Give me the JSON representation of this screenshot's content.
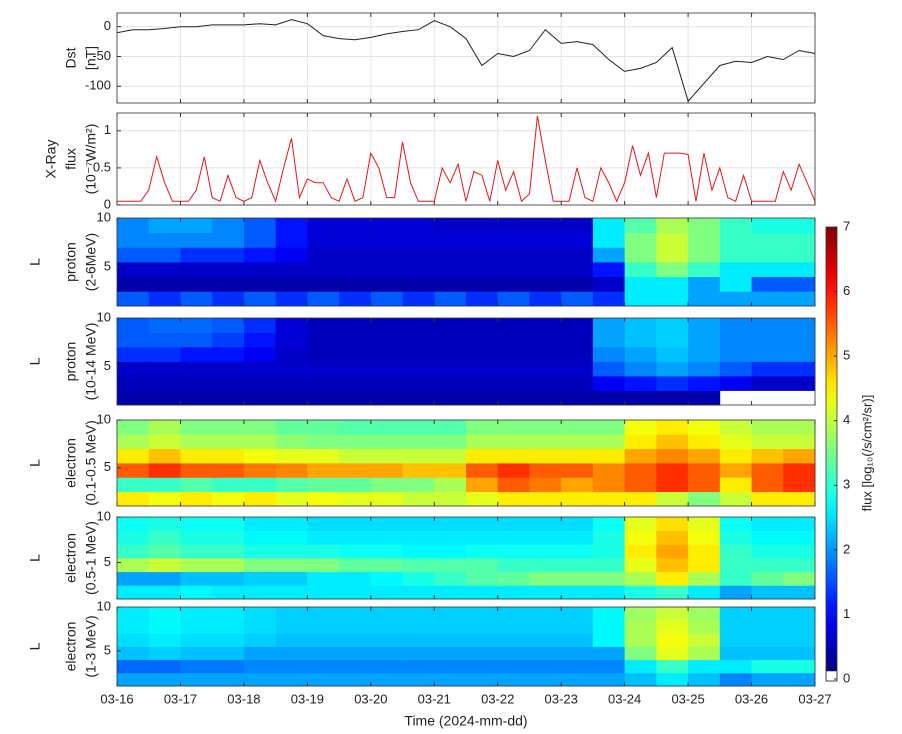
{
  "time_axis": {
    "label": "Time (2024-mm-dd)",
    "lim": [
      0,
      11
    ],
    "ticks": [
      {
        "value": 0,
        "label": "03-16"
      },
      {
        "value": 1,
        "label": "03-17"
      },
      {
        "value": 2,
        "label": "03-18"
      },
      {
        "value": 3,
        "label": "03-19"
      },
      {
        "value": 4,
        "label": "03-20"
      },
      {
        "value": 5,
        "label": "03-21"
      },
      {
        "value": 6,
        "label": "03-22"
      },
      {
        "value": 7,
        "label": "03-23"
      },
      {
        "value": 8,
        "label": "03-24"
      },
      {
        "value": 9,
        "label": "03-25"
      },
      {
        "value": 10,
        "label": "03-26"
      },
      {
        "value": 11,
        "label": "03-27"
      }
    ]
  },
  "colorbar": {
    "label": "flux [log₁₀(/s/cm²/sr)]",
    "lim": [
      0,
      7
    ],
    "ticks": [
      0,
      1,
      2,
      3,
      4,
      5,
      6,
      7
    ]
  },
  "chart_data": [
    {
      "type": "line",
      "ylabel": [
        "Dst",
        "[nT]"
      ],
      "color": "#222222",
      "grid": true,
      "ylim": [
        -128,
        23
      ],
      "yticks": [
        -100,
        -50,
        0
      ],
      "x": [
        0,
        0.25,
        0.5,
        0.75,
        1,
        1.25,
        1.5,
        1.75,
        2,
        2.25,
        2.5,
        2.75,
        3,
        3.25,
        3.5,
        3.75,
        4,
        4.25,
        4.5,
        4.75,
        5,
        5.25,
        5.5,
        5.75,
        6,
        6.25,
        6.5,
        6.75,
        7,
        7.25,
        7.5,
        7.75,
        8,
        8.25,
        8.5,
        8.75,
        9,
        9.25,
        9.5,
        9.75,
        10,
        10.25,
        10.5,
        10.75,
        11
      ],
      "values": [
        -10,
        -5,
        -5,
        -3,
        0,
        0,
        3,
        3,
        3,
        5,
        3,
        12,
        5,
        -15,
        -20,
        -22,
        -18,
        -12,
        -8,
        -5,
        10,
        0,
        -20,
        -65,
        -45,
        -50,
        -40,
        -5,
        -28,
        -25,
        -30,
        -55,
        -75,
        -70,
        -60,
        -35,
        -125,
        -95,
        -65,
        -58,
        -60,
        -50,
        -55,
        -40,
        -45
      ]
    },
    {
      "type": "line",
      "ylabel": [
        "X-Ray",
        "flux",
        "(10⁻⁷W/m²)"
      ],
      "color": "#e8141b",
      "grid": true,
      "ylim": [
        0,
        1.24
      ],
      "yticks": [
        0,
        0.5,
        1
      ],
      "x": [
        0,
        0.125,
        0.25,
        0.375,
        0.5,
        0.625,
        0.75,
        0.875,
        1,
        1.125,
        1.25,
        1.375,
        1.5,
        1.625,
        1.75,
        1.875,
        2,
        2.125,
        2.25,
        2.375,
        2.5,
        2.625,
        2.75,
        2.875,
        3,
        3.125,
        3.25,
        3.375,
        3.5,
        3.625,
        3.75,
        3.875,
        4,
        4.125,
        4.25,
        4.375,
        4.5,
        4.625,
        4.75,
        4.875,
        5,
        5.125,
        5.25,
        5.375,
        5.5,
        5.625,
        5.75,
        5.875,
        6,
        6.125,
        6.25,
        6.375,
        6.5,
        6.625,
        6.75,
        6.875,
        7,
        7.125,
        7.25,
        7.375,
        7.5,
        7.625,
        7.75,
        7.875,
        8,
        8.125,
        8.25,
        8.375,
        8.5,
        8.625,
        8.75,
        8.875,
        9,
        9.125,
        9.25,
        9.375,
        9.5,
        9.625,
        9.75,
        9.875,
        10,
        10.125,
        10.25,
        10.375,
        10.5,
        10.625,
        10.75,
        10.875,
        11
      ],
      "values": [
        0.05,
        0.05,
        0.05,
        0.05,
        0.2,
        0.65,
        0.3,
        0.05,
        0.05,
        0.05,
        0.2,
        0.65,
        0.1,
        0.05,
        0.4,
        0.1,
        0.05,
        0.1,
        0.6,
        0.3,
        0.05,
        0.5,
        0.9,
        0.1,
        0.35,
        0.3,
        0.3,
        0.1,
        0.05,
        0.35,
        0.05,
        0.1,
        0.7,
        0.5,
        0.1,
        0.1,
        0.85,
        0.3,
        0.05,
        0.05,
        0.05,
        0.5,
        0.3,
        0.55,
        0.05,
        0.45,
        0.4,
        0.05,
        0.6,
        0.2,
        0.45,
        0.05,
        0.15,
        1.2,
        0.6,
        0.05,
        0.05,
        0.05,
        0.5,
        0.1,
        0.05,
        0.5,
        0.3,
        0.05,
        0.3,
        0.8,
        0.4,
        0.7,
        0.1,
        0.7,
        0.7,
        0.7,
        0.68,
        0.05,
        0.7,
        0.2,
        0.5,
        0.1,
        0.05,
        0.4,
        0.05,
        0.05,
        0.05,
        0.05,
        0.45,
        0.2,
        0.55,
        0.3,
        0.05
      ]
    },
    {
      "type": "heatmap",
      "ylabel": "L",
      "label": [
        "proton",
        "(2-6MeV)"
      ],
      "ylim": [
        1,
        10
      ],
      "yticks": [
        5,
        10
      ],
      "xbins": [
        0,
        0.5,
        1,
        1.5,
        2,
        2.5,
        3,
        3.5,
        4,
        4.5,
        5,
        5.5,
        6,
        6.5,
        7,
        7.5,
        8,
        8.5,
        9,
        9.5,
        10,
        10.5,
        11
      ],
      "ybins": [
        1,
        2.5,
        4,
        5.5,
        7,
        8.5,
        10
      ],
      "z": [
        [
          1.5,
          1.2,
          1.5,
          1.2,
          1.5,
          1.2,
          1.5,
          1.2,
          1.5,
          1.2,
          1.5,
          1.2,
          1.5,
          1.2,
          1.5,
          1.2,
          2.5,
          2.5,
          2,
          2,
          2,
          2
        ],
        [
          0.3,
          0.3,
          0.3,
          0.3,
          0.3,
          0.3,
          0.3,
          0.3,
          0.3,
          0.3,
          0.3,
          0.3,
          0.3,
          0.3,
          0.3,
          0.5,
          2.5,
          2.5,
          2,
          2.5,
          1.5,
          1.5
        ],
        [
          0.5,
          0.5,
          0.5,
          0.5,
          0.5,
          0.5,
          0.5,
          0.5,
          0.5,
          0.5,
          0.5,
          0.5,
          0.5,
          0.5,
          0.5,
          1,
          3,
          3.5,
          3,
          2.5,
          2.5,
          2.5
        ],
        [
          1.5,
          1.5,
          1.2,
          1.2,
          1,
          0.8,
          0.5,
          0.5,
          0.5,
          0.5,
          0.5,
          0.5,
          0.5,
          0.5,
          0.5,
          2,
          3.5,
          4,
          3.5,
          3,
          3,
          3
        ],
        [
          1.8,
          1.8,
          1.8,
          1.8,
          1.5,
          1,
          0.6,
          0.6,
          0.6,
          0.6,
          0.6,
          0.6,
          0.6,
          0.6,
          0.6,
          2.5,
          3.5,
          4,
          3.5,
          3,
          3,
          3
        ],
        [
          1.8,
          2,
          2,
          1.8,
          1.5,
          1,
          0.6,
          0.6,
          0.6,
          0.6,
          0.5,
          0.5,
          0.5,
          0.5,
          0.5,
          2.5,
          3.2,
          3.8,
          3.5,
          3,
          2.8,
          2.8
        ]
      ]
    },
    {
      "type": "heatmap",
      "ylabel": "L",
      "label": [
        "proton",
        "(10-14 MeV)"
      ],
      "ylim": [
        1,
        10
      ],
      "yticks": [
        5,
        10
      ],
      "xbins": [
        0,
        0.5,
        1,
        1.5,
        2,
        2.5,
        3,
        3.5,
        4,
        4.5,
        5,
        5.5,
        6,
        6.5,
        7,
        7.5,
        8,
        8.5,
        9,
        9.5,
        10,
        10.5,
        11
      ],
      "ybins": [
        1,
        2.5,
        4,
        5.5,
        7,
        8.5,
        10
      ],
      "z": [
        [
          0.3,
          0.3,
          0.3,
          0.3,
          0.3,
          0.3,
          0.3,
          0.3,
          0.3,
          0.3,
          0.3,
          0.3,
          0.3,
          0.3,
          0.3,
          0.3,
          0.3,
          0.3,
          0.3,
          null,
          null,
          null
        ],
        [
          0.4,
          0.4,
          0.4,
          0.4,
          0.4,
          0.4,
          0.4,
          0.4,
          0.4,
          0.4,
          0.4,
          0.4,
          0.4,
          0.4,
          0.4,
          0.8,
          1,
          1.2,
          1,
          0.8,
          0.5,
          0.5
        ],
        [
          0.5,
          0.5,
          0.5,
          0.5,
          0.5,
          0.5,
          0.5,
          0.5,
          0.5,
          0.5,
          0.5,
          0.5,
          0.5,
          0.5,
          0.5,
          1.5,
          1.8,
          2,
          1.8,
          1.5,
          1.2,
          1.2
        ],
        [
          1.2,
          1.2,
          1,
          1,
          0.8,
          0.5,
          0.4,
          0.4,
          0.4,
          0.4,
          0.4,
          0.4,
          0.4,
          0.4,
          0.4,
          1.8,
          2,
          2.2,
          2,
          1.8,
          1.8,
          1.8
        ],
        [
          1.5,
          1.5,
          1.5,
          1.3,
          1,
          0.6,
          0.4,
          0.4,
          0.4,
          0.4,
          0.4,
          0.4,
          0.4,
          0.4,
          0.4,
          2,
          2.2,
          2.3,
          2,
          1.8,
          1.8,
          1.8
        ],
        [
          1.5,
          1.6,
          1.6,
          1.5,
          1.2,
          0.6,
          0.4,
          0.4,
          0.4,
          0.4,
          0.4,
          0.4,
          0.4,
          0.4,
          0.4,
          2,
          2.2,
          2.3,
          2,
          1.8,
          1.8,
          1.8
        ]
      ]
    },
    {
      "type": "heatmap",
      "ylabel": "L",
      "label": [
        "electron",
        "(0.1-0.5 MeV)"
      ],
      "ylim": [
        1,
        10
      ],
      "yticks": [
        5,
        10
      ],
      "xbins": [
        0,
        0.5,
        1,
        1.5,
        2,
        2.5,
        3,
        3.5,
        4,
        4.5,
        5,
        5.5,
        6,
        6.5,
        7,
        7.5,
        8,
        8.5,
        9,
        9.5,
        10,
        10.5,
        11
      ],
      "ybins": [
        1,
        2.5,
        4,
        5.5,
        7,
        8.5,
        10
      ],
      "z": [
        [
          4.5,
          4.3,
          4.5,
          4.3,
          4.5,
          4.2,
          4.3,
          4.2,
          4.2,
          4,
          4,
          4.2,
          4.5,
          4.5,
          4.5,
          4.5,
          4.5,
          4,
          3.5,
          4,
          4.5,
          4.5
        ],
        [
          3,
          3,
          3.2,
          3,
          3,
          3.2,
          3.3,
          3.3,
          3.5,
          3.5,
          3.8,
          5,
          5.5,
          5.3,
          5,
          5.2,
          5.5,
          5.8,
          5.5,
          4.5,
          5.5,
          5.8
        ],
        [
          5.5,
          5.8,
          5.5,
          5.5,
          5.3,
          5.2,
          5,
          5,
          5,
          4.8,
          4.8,
          5.5,
          5.8,
          5.5,
          5.5,
          5.2,
          5.5,
          5.8,
          5.5,
          5,
          5.5,
          5.8
        ],
        [
          4.5,
          4.8,
          4.5,
          4.5,
          4.3,
          4.2,
          4.2,
          4,
          4,
          4,
          4,
          4.5,
          4.5,
          4.5,
          4.5,
          4.5,
          5,
          5.2,
          5,
          4.5,
          4.8,
          5
        ],
        [
          3.8,
          4,
          3.8,
          3.8,
          3.8,
          3.6,
          3.5,
          3.5,
          3.5,
          3.5,
          3.5,
          3.8,
          3.8,
          3.8,
          3.8,
          3.8,
          4.5,
          4.8,
          4.5,
          4.2,
          4,
          4
        ],
        [
          3.5,
          3.8,
          3.5,
          3.5,
          3.5,
          3.3,
          3.3,
          3.2,
          3.2,
          3.2,
          3.2,
          3.5,
          3.5,
          3.5,
          3.5,
          3.5,
          4.3,
          4.5,
          4.3,
          4,
          3.8,
          3.8
        ]
      ]
    },
    {
      "type": "heatmap",
      "ylabel": "L",
      "label": [
        "electron",
        "(0.5-1 MeV)"
      ],
      "ylim": [
        1,
        10
      ],
      "yticks": [
        5,
        10
      ],
      "xbins": [
        0,
        0.5,
        1,
        1.5,
        2,
        2.5,
        3,
        3.5,
        4,
        4.5,
        5,
        5.5,
        6,
        6.5,
        7,
        7.5,
        8,
        8.5,
        9,
        9.5,
        10,
        10.5,
        11
      ],
      "ybins": [
        1,
        2.5,
        4,
        5.5,
        7,
        8.5,
        10
      ],
      "z": [
        [
          2.5,
          2.5,
          2.6,
          2.5,
          2.5,
          2.5,
          2.5,
          2.5,
          2.5,
          2.5,
          2.5,
          2.5,
          2.5,
          2.5,
          2.5,
          2.5,
          2.8,
          3,
          2.5,
          2,
          2.2,
          2.2
        ],
        [
          2,
          2,
          2.2,
          2.2,
          2.3,
          2.3,
          2.5,
          2.5,
          2.6,
          2.8,
          3,
          3.2,
          3.3,
          3.5,
          3.5,
          3.5,
          3.8,
          4.5,
          3.8,
          3,
          3.3,
          3.5
        ],
        [
          3.8,
          4,
          3.8,
          3.8,
          3.5,
          3.5,
          3.5,
          3.3,
          3.3,
          3.2,
          3.2,
          3.2,
          3,
          3,
          3,
          3,
          4.2,
          4.8,
          4.5,
          3,
          3,
          3
        ],
        [
          3,
          3.2,
          3,
          3,
          2.8,
          2.8,
          2.8,
          2.7,
          2.7,
          2.6,
          2.6,
          2.7,
          2.7,
          2.7,
          2.7,
          2.8,
          4.5,
          5,
          4.5,
          3,
          2.8,
          2.8
        ],
        [
          2.8,
          3,
          2.8,
          2.8,
          2.6,
          2.6,
          2.5,
          2.5,
          2.5,
          2.5,
          2.5,
          2.5,
          2.5,
          2.5,
          2.5,
          2.8,
          4.3,
          4.8,
          4.3,
          2.8,
          2.6,
          2.6
        ],
        [
          2.7,
          2.8,
          2.7,
          2.7,
          2.5,
          2.5,
          2.4,
          2.4,
          2.4,
          2.4,
          2.4,
          2.4,
          2.4,
          2.4,
          2.4,
          2.7,
          4.2,
          4.6,
          4.2,
          2.7,
          2.5,
          2.5
        ]
      ]
    },
    {
      "type": "heatmap",
      "ylabel": "L",
      "label": [
        "electron",
        "(1-3 MeV)"
      ],
      "ylim": [
        1,
        10
      ],
      "yticks": [
        5,
        10
      ],
      "xbins": [
        0,
        0.5,
        1,
        1.5,
        2,
        2.5,
        3,
        3.5,
        4,
        4.5,
        5,
        5.5,
        6,
        6.5,
        7,
        7.5,
        8,
        8.5,
        9,
        9.5,
        10,
        10.5,
        11
      ],
      "ybins": [
        1,
        2.5,
        4,
        5.5,
        7,
        8.5,
        10
      ],
      "z": [
        [
          2,
          2,
          2,
          2,
          2,
          2,
          2,
          2,
          2,
          2,
          2,
          2,
          2,
          2,
          2,
          2,
          2.2,
          2.5,
          2.2,
          1.8,
          2,
          2
        ],
        [
          1.6,
          1.6,
          1.7,
          1.7,
          1.8,
          1.8,
          1.8,
          1.8,
          1.8,
          1.8,
          1.8,
          1.8,
          1.8,
          1.8,
          1.8,
          1.8,
          2.5,
          3,
          2.5,
          2.5,
          2.8,
          2.8
        ],
        [
          2.2,
          2.3,
          2.2,
          2.2,
          2,
          2,
          2,
          2,
          2,
          2,
          2,
          2,
          2,
          2,
          2,
          2,
          3.5,
          4.2,
          3.8,
          2.2,
          2.2,
          2.2
        ],
        [
          2.4,
          2.5,
          2.4,
          2.4,
          2.3,
          2.2,
          2.2,
          2.2,
          2.2,
          2.2,
          2.2,
          2.2,
          2.2,
          2.2,
          2.2,
          2.6,
          3.8,
          4.3,
          4,
          2.3,
          2.3,
          2.3
        ],
        [
          2.5,
          2.6,
          2.5,
          2.5,
          2.4,
          2.3,
          2.3,
          2.3,
          2.3,
          2.3,
          2.3,
          2.3,
          2.3,
          2.3,
          2.3,
          2.6,
          3.8,
          4.2,
          3.8,
          2.3,
          2.3,
          2.3
        ],
        [
          2.5,
          2.6,
          2.5,
          2.5,
          2.4,
          2.3,
          2.3,
          2.3,
          2.3,
          2.3,
          2.3,
          2.3,
          2.3,
          2.3,
          2.3,
          2.6,
          3.7,
          4,
          3.7,
          2.3,
          2.3,
          2.3
        ]
      ]
    }
  ]
}
